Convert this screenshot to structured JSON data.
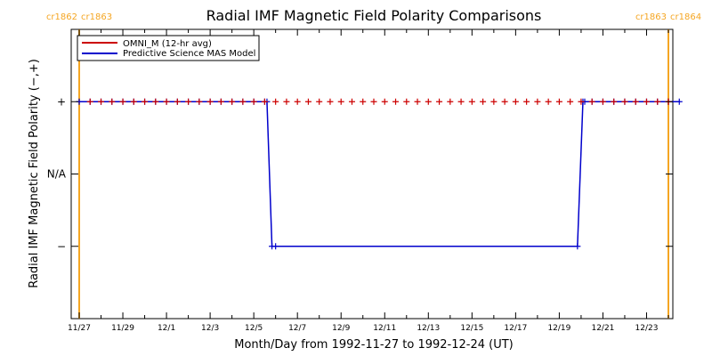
{
  "chart_data": {
    "type": "line",
    "title": "Radial IMF Magnetic Field Polarity Comparisons",
    "xlabel": "Month/Day from 1992-11-27 to 1992-12-24 (UT)",
    "ylabel": "Radial IMF Magnetic Field Polarity (−,+)",
    "x_start": "1992-11-27",
    "x_end": "1992-12-24",
    "x_tick_labels": [
      "11/27",
      "11/29",
      "12/1",
      "12/3",
      "12/5",
      "12/7",
      "12/9",
      "12/11",
      "12/13",
      "12/15",
      "12/17",
      "12/19",
      "12/21",
      "12/23"
    ],
    "y_tick_labels": [
      "+",
      "N/A",
      "−"
    ],
    "ylim": [
      -2,
      2
    ],
    "grid": false,
    "legend_position": "top-left",
    "carrington_markers": [
      {
        "date": "1992-11-27",
        "left_label": "cr1862",
        "right_label": "cr1863"
      },
      {
        "date": "1992-12-24",
        "left_label": "cr1863",
        "right_label": "cr1864"
      }
    ],
    "series": [
      {
        "name": "OMNI_M (12-hr avg)",
        "color": "#cc0000",
        "marker": "plus",
        "x": [
          "1992-11-27 12:00",
          "1992-11-28 00:00",
          "1992-11-28 12:00",
          "1992-11-29 00:00",
          "1992-11-29 12:00",
          "1992-11-30 00:00",
          "1992-11-30 12:00",
          "1992-12-01 00:00",
          "1992-12-01 12:00",
          "1992-12-02 00:00",
          "1992-12-02 12:00",
          "1992-12-03 00:00",
          "1992-12-03 12:00",
          "1992-12-04 00:00",
          "1992-12-04 12:00",
          "1992-12-05 00:00",
          "1992-12-05 12:00",
          "1992-12-06 00:00",
          "1992-12-06 12:00",
          "1992-12-07 00:00",
          "1992-12-07 12:00",
          "1992-12-08 00:00",
          "1992-12-08 12:00",
          "1992-12-09 00:00",
          "1992-12-09 12:00",
          "1992-12-10 00:00",
          "1992-12-10 12:00",
          "1992-12-11 00:00",
          "1992-12-11 12:00",
          "1992-12-12 00:00",
          "1992-12-12 12:00",
          "1992-12-13 00:00",
          "1992-12-13 12:00",
          "1992-12-14 00:00",
          "1992-12-14 12:00",
          "1992-12-15 00:00",
          "1992-12-15 12:00",
          "1992-12-16 00:00",
          "1992-12-16 12:00",
          "1992-12-17 00:00",
          "1992-12-17 12:00",
          "1992-12-18 00:00",
          "1992-12-18 12:00",
          "1992-12-19 00:00",
          "1992-12-19 12:00",
          "1992-12-20 00:00",
          "1992-12-20 12:00",
          "1992-12-21 00:00",
          "1992-12-21 12:00",
          "1992-12-22 00:00",
          "1992-12-22 12:00",
          "1992-12-23 00:00",
          "1992-12-23 12:00",
          "1992-12-24 00:00"
        ],
        "y": [
          1,
          1,
          1,
          1,
          1,
          1,
          1,
          1,
          1,
          1,
          1,
          1,
          1,
          1,
          1,
          1,
          1,
          1,
          1,
          1,
          1,
          1,
          1,
          1,
          1,
          1,
          1,
          1,
          1,
          1,
          1,
          1,
          1,
          1,
          1,
          1,
          1,
          1,
          1,
          1,
          1,
          1,
          1,
          1,
          1,
          1,
          1,
          1,
          1,
          1,
          1,
          1,
          1,
          1
        ]
      },
      {
        "name": "Predictive Science MAS Model",
        "color": "#0000cc",
        "marker": "plus",
        "x": [
          "1992-11-27 00:00",
          "1992-11-27 12:00",
          "1992-11-28 00:00",
          "1992-11-28 12:00",
          "1992-11-29 00:00",
          "1992-11-29 12:00",
          "1992-11-30 00:00",
          "1992-11-30 12:00",
          "1992-12-01 00:00",
          "1992-12-01 12:00",
          "1992-12-02 00:00",
          "1992-12-02 12:00",
          "1992-12-03 00:00",
          "1992-12-03 12:00",
          "1992-12-04 00:00",
          "1992-12-04 12:00",
          "1992-12-05 00:00",
          "1992-12-05 12:00",
          "1992-12-05 14:30",
          "1992-12-05 20:00",
          "1992-12-06 00:00",
          "1992-12-19 20:00",
          "1992-12-20 02:00",
          "1992-12-20 04:00",
          "1992-12-20 12:00",
          "1992-12-21 00:00",
          "1992-12-21 12:00",
          "1992-12-22 00:00",
          "1992-12-22 12:00",
          "1992-12-23 00:00",
          "1992-12-23 12:00",
          "1992-12-24 00:00",
          "1992-12-24 12:00"
        ],
        "y": [
          1,
          1,
          1,
          1,
          1,
          1,
          1,
          1,
          1,
          1,
          1,
          1,
          1,
          1,
          1,
          1,
          1,
          1,
          1,
          -1,
          -1,
          -1,
          1,
          1,
          1,
          1,
          1,
          1,
          1,
          1,
          1,
          1,
          1
        ]
      }
    ]
  }
}
